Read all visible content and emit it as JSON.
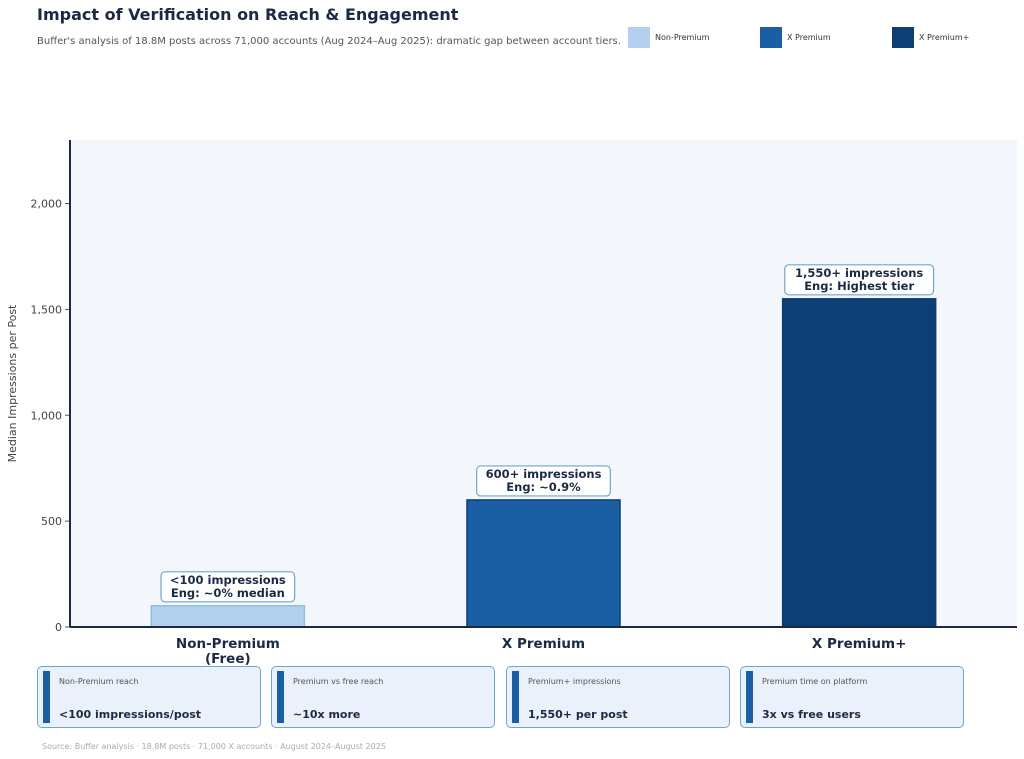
{
  "header": {
    "title": "Impact of Verification on Reach & Engagement",
    "subtitle": "Buffer's analysis of 18.8M posts across 71,000 accounts (Aug 2024–Aug 2025): dramatic gap between account tiers."
  },
  "chart_data": {
    "type": "bar",
    "categories": [
      "Non-Premium\n(Free)",
      "X Premium",
      "X Premium+"
    ],
    "values": [
      100,
      600,
      1550
    ],
    "colors": [
      "#b3d1ef",
      "#1a5ea3",
      "#0d3f74"
    ],
    "annotations": [
      [
        "<100 impressions",
        "Eng: ~0% median"
      ],
      [
        "600+ impressions",
        "Eng: ~0.9%"
      ],
      [
        "1,550+ impressions",
        "Eng: Highest tier"
      ]
    ],
    "ylabel": "Median Impressions per Post",
    "ylim": [
      0,
      2300
    ],
    "yticks": [
      0,
      500,
      1000,
      1500,
      2000
    ],
    "ytick_labels": [
      "0",
      "500",
      "1,000",
      "1,500",
      "2,000"
    ],
    "legend": {
      "placement": "top-right",
      "entries": [
        "Non-Premium",
        "X Premium",
        "X Premium+"
      ]
    }
  },
  "cards": [
    {
      "label": "Non-Premium reach",
      "value": "<100 impressions/post"
    },
    {
      "label": "Premium vs free reach",
      "value": "~10x more"
    },
    {
      "label": "Premium+ impressions",
      "value": "1,550+ per post"
    },
    {
      "label": "Premium time on platform",
      "value": "3x vs free users"
    }
  ],
  "source": "Source: Buffer analysis · 18.8M posts · 71,000 X accounts · August 2024–August 2025"
}
